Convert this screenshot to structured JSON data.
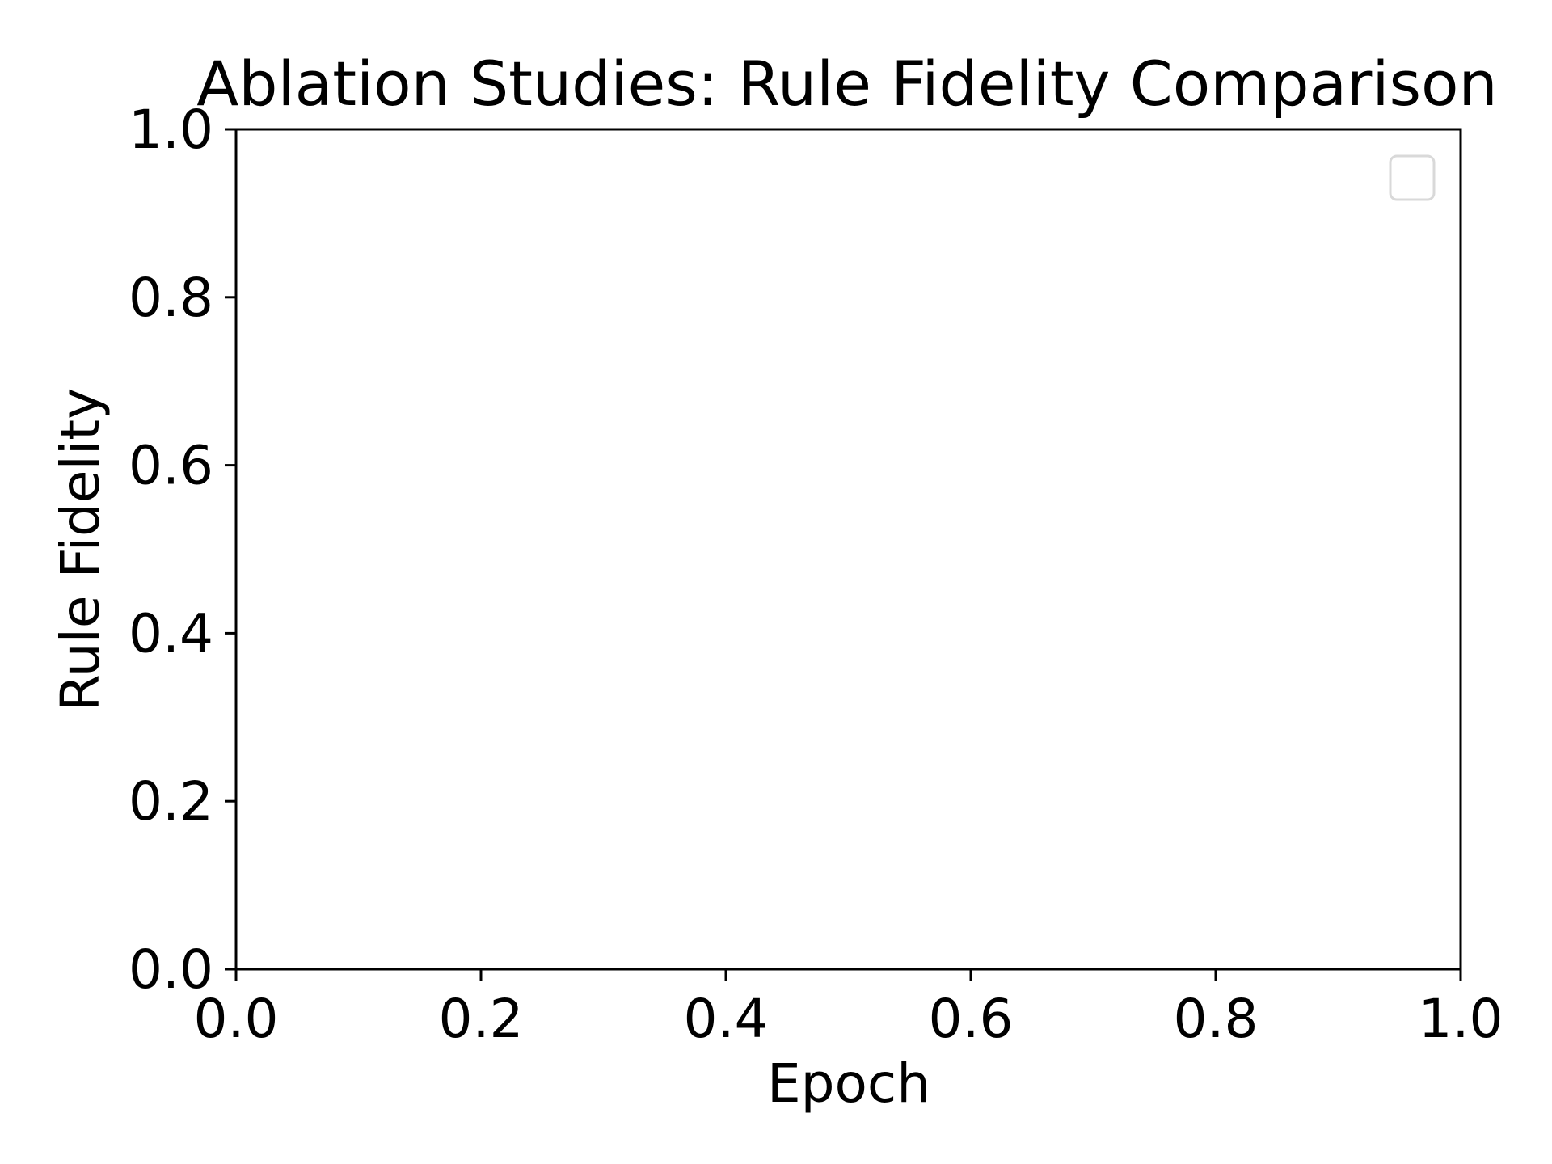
{
  "chart_data": {
    "type": "line",
    "title": "Ablation Studies: Rule Fidelity Comparison",
    "xlabel": "Epoch",
    "ylabel": "Rule Fidelity",
    "xlim": [
      0.0,
      1.0
    ],
    "ylim": [
      0.0,
      1.0
    ],
    "x_ticks": [
      "0.0",
      "0.2",
      "0.4",
      "0.6",
      "0.8",
      "1.0"
    ],
    "y_ticks": [
      "0.0",
      "0.2",
      "0.4",
      "0.6",
      "0.8",
      "1.0"
    ],
    "series": [],
    "grid": false,
    "legend": {
      "position": "top-right",
      "entries": []
    },
    "colors": {
      "axes": "#000000",
      "legend_border": "#d9d9d9",
      "background": "#ffffff"
    }
  }
}
